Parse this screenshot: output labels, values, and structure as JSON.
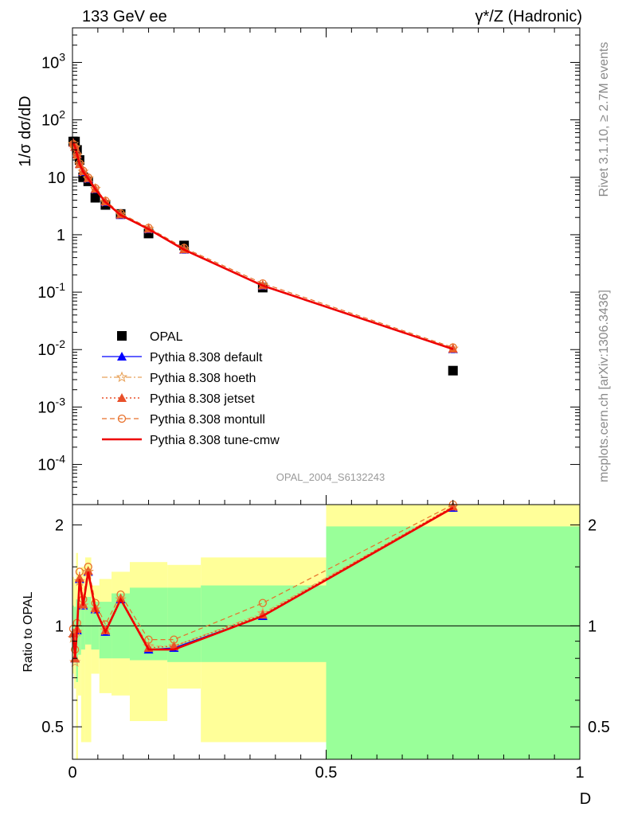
{
  "header": {
    "left": "133 GeV ee",
    "right": "γ*/Z (Hadronic)"
  },
  "side": {
    "rivet": "Rivet 3.1.10, ≥ 2.7M events",
    "mcplots": "mcplots.cern.ch [arXiv:1306.3436]"
  },
  "watermark": "OPAL_2004_S6132243",
  "colors": {
    "data": "#000000",
    "default": "#0000ff",
    "hoeth": "#e8a25a",
    "jetset": "#e8502a",
    "montull": "#e8702a",
    "cmw": "#ee0000",
    "band_outer": "#ffff99",
    "band_inner": "#99ff99"
  },
  "chart_data": [
    {
      "type": "scatter",
      "panel": "main",
      "ylabel": "1/σ dσ/dD",
      "yscale": "log",
      "ylim": [
        2e-05,
        4000
      ],
      "xlim": [
        0,
        1
      ],
      "yticks": [
        "10^-4",
        "10^-3",
        "10^-2",
        "10^-1",
        "1",
        "10",
        "10^2",
        "10^3"
      ],
      "legend_position": "middle-left",
      "series": [
        {
          "name": "OPAL",
          "key": "data",
          "marker": "square",
          "x": [
            0.0015,
            0.005,
            0.009,
            0.014,
            0.021,
            0.031,
            0.045,
            0.065,
            0.095,
            0.15,
            0.22,
            0.375,
            0.75
          ],
          "y": [
            42,
            42,
            30,
            20,
            10,
            8.5,
            4.4,
            3.3,
            2.3,
            1.05,
            0.65,
            0.12,
            0.0043
          ]
        },
        {
          "name": "Pythia 8.308 default",
          "key": "default",
          "style": "solid",
          "marker": "tri",
          "x": [
            0.0015,
            0.005,
            0.009,
            0.014,
            0.021,
            0.031,
            0.045,
            0.065,
            0.095,
            0.15,
            0.22,
            0.375,
            0.75
          ],
          "y": [
            40,
            34,
            25,
            17,
            12.5,
            9.5,
            6.2,
            3.7,
            2.2,
            1.25,
            0.55,
            0.13,
            0.0102
          ]
        },
        {
          "name": "Pythia 8.308 hoeth",
          "key": "hoeth",
          "style": "dashdot",
          "marker": "star",
          "x": [
            0.0015,
            0.005,
            0.009,
            0.014,
            0.021,
            0.031,
            0.045,
            0.065,
            0.095,
            0.15,
            0.22,
            0.375,
            0.75
          ],
          "y": [
            38,
            33,
            24,
            17,
            12.5,
            9.6,
            6.3,
            3.75,
            2.25,
            1.27,
            0.56,
            0.132,
            0.0104
          ]
        },
        {
          "name": "Pythia 8.308 jetset",
          "key": "jetset",
          "style": "dotted",
          "marker": "tri",
          "x": [
            0.0015,
            0.005,
            0.009,
            0.014,
            0.021,
            0.031,
            0.045,
            0.065,
            0.095,
            0.15,
            0.22,
            0.375,
            0.75
          ],
          "y": [
            40,
            34,
            25,
            17,
            12.8,
            9.7,
            6.3,
            3.8,
            2.25,
            1.27,
            0.56,
            0.132,
            0.0104
          ]
        },
        {
          "name": "Pythia 8.308 montull",
          "key": "montull",
          "style": "dashed",
          "marker": "circle",
          "x": [
            0.0015,
            0.005,
            0.009,
            0.014,
            0.021,
            0.031,
            0.045,
            0.065,
            0.095,
            0.15,
            0.22,
            0.375,
            0.75
          ],
          "y": [
            38,
            33,
            25,
            17.5,
            13,
            9.9,
            6.5,
            3.9,
            2.35,
            1.32,
            0.59,
            0.142,
            0.0109
          ]
        },
        {
          "name": "Pythia 8.308 tune-cmw",
          "key": "cmw",
          "style": "solid-thick",
          "marker": "none",
          "x": [
            0.0015,
            0.005,
            0.009,
            0.014,
            0.021,
            0.031,
            0.045,
            0.065,
            0.095,
            0.15,
            0.22,
            0.375,
            0.75
          ],
          "y": [
            40,
            34,
            25,
            17,
            12.5,
            9.5,
            6.2,
            3.7,
            2.2,
            1.25,
            0.55,
            0.13,
            0.0102
          ]
        }
      ]
    },
    {
      "type": "line",
      "panel": "ratio",
      "ylabel": "Ratio to OPAL",
      "xlabel": "D",
      "yscale": "log",
      "ylim": [
        0.4,
        2.3
      ],
      "xlim": [
        0,
        1
      ],
      "yticks": [
        "0.5",
        "1",
        "2"
      ],
      "xticks": [
        "0",
        "0.5",
        "1"
      ],
      "bands": {
        "edges": [
          0,
          0.003,
          0.007,
          0.011,
          0.017,
          0.025,
          0.037,
          0.053,
          0.077,
          0.113,
          0.187,
          0.253,
          0.5,
          1.0
        ],
        "outer_lo": [
          0.72,
          0.65,
          0.38,
          0.62,
          0.45,
          0.45,
          0.72,
          0.63,
          0.62,
          0.52,
          0.65,
          0.45,
          0.38
        ],
        "outer_hi": [
          1.4,
          1.38,
          1.65,
          1.4,
          1.5,
          1.6,
          1.32,
          1.38,
          1.45,
          1.55,
          1.52,
          1.6,
          2.3
        ],
        "inner_lo": [
          0.85,
          0.82,
          0.68,
          0.82,
          0.85,
          0.88,
          0.85,
          0.8,
          0.8,
          0.79,
          0.78,
          0.78,
          0.39
        ],
        "inner_hi": [
          1.15,
          1.14,
          1.2,
          1.14,
          1.2,
          1.22,
          1.18,
          1.18,
          1.25,
          1.3,
          1.3,
          1.32,
          1.98
        ]
      },
      "reference": 1,
      "series": [
        {
          "name": "Pythia 8.308 default",
          "key": "default",
          "style": "solid",
          "marker": "tri",
          "x": [
            0.0015,
            0.005,
            0.009,
            0.014,
            0.021,
            0.031,
            0.045,
            0.065,
            0.095,
            0.15,
            0.2,
            0.375,
            0.75
          ],
          "y": [
            0.95,
            0.8,
            0.97,
            1.38,
            1.15,
            1.45,
            1.12,
            0.96,
            1.2,
            0.85,
            0.86,
            1.07,
            2.25
          ]
        },
        {
          "name": "Pythia 8.308 hoeth",
          "key": "hoeth",
          "style": "dashdot",
          "marker": "star",
          "x": [
            0.0015,
            0.005,
            0.009,
            0.014,
            0.021,
            0.031,
            0.045,
            0.065,
            0.095,
            0.15,
            0.2,
            0.375,
            0.75
          ],
          "y": [
            0.92,
            0.78,
            0.96,
            1.36,
            1.15,
            1.45,
            1.12,
            0.97,
            1.2,
            0.87,
            0.87,
            1.09,
            2.27
          ]
        },
        {
          "name": "Pythia 8.308 jetset",
          "key": "jetset",
          "style": "dotted",
          "marker": "tri",
          "x": [
            0.0015,
            0.005,
            0.009,
            0.014,
            0.021,
            0.031,
            0.045,
            0.065,
            0.095,
            0.15,
            0.2,
            0.375,
            0.75
          ],
          "y": [
            0.95,
            0.8,
            0.98,
            1.39,
            1.16,
            1.46,
            1.13,
            0.97,
            1.21,
            0.86,
            0.87,
            1.08,
            2.27
          ]
        },
        {
          "name": "Pythia 8.308 montull",
          "key": "montull",
          "style": "dashed",
          "marker": "circle",
          "x": [
            0.0015,
            0.005,
            0.009,
            0.014,
            0.021,
            0.031,
            0.045,
            0.065,
            0.095,
            0.15,
            0.2,
            0.375,
            0.75
          ],
          "y": [
            0.98,
            0.85,
            1.02,
            1.45,
            1.2,
            1.5,
            1.17,
            1.01,
            1.24,
            0.91,
            0.91,
            1.17,
            2.3
          ]
        },
        {
          "name": "Pythia 8.308 tune-cmw",
          "key": "cmw",
          "style": "solid-thick",
          "marker": "none",
          "x": [
            0.0015,
            0.005,
            0.009,
            0.014,
            0.021,
            0.031,
            0.045,
            0.065,
            0.095,
            0.15,
            0.2,
            0.375,
            0.75
          ],
          "y": [
            0.95,
            0.8,
            0.97,
            1.38,
            1.15,
            1.45,
            1.12,
            0.96,
            1.2,
            0.85,
            0.85,
            1.07,
            2.25
          ]
        }
      ]
    }
  ]
}
